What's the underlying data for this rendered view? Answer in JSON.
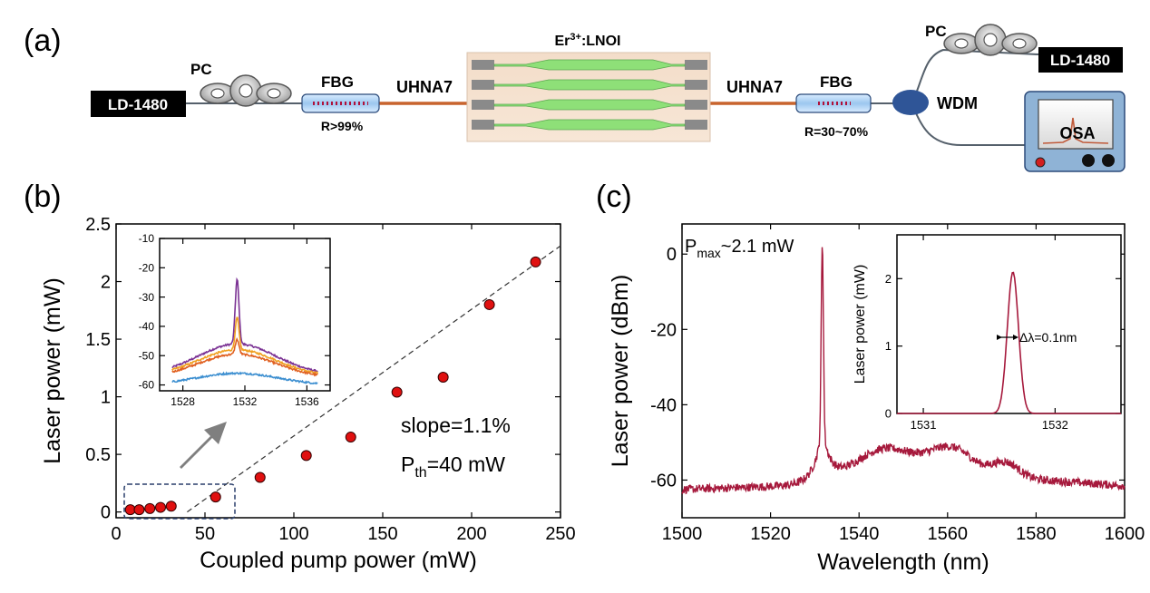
{
  "panel_a": {
    "label": "(a)",
    "ld_left": "LD-1480",
    "ld_right": "LD-1480",
    "pc_left": "PC",
    "pc_right": "PC",
    "fbg_left": "FBG",
    "fbg_left_r": "R>99%",
    "fbg_right": "FBG",
    "fbg_right_r": "R=30~70%",
    "uhna_left": "UHNA7",
    "uhna_right": "UHNA7",
    "chip_base": "Er",
    "chip_sup": "3+",
    "chip_rest": ":LNOI",
    "wdm": "WDM",
    "osa": "OSA"
  },
  "panel_b": {
    "label": "(b)",
    "slope_text": "slope=1.1%",
    "pth_main": "P",
    "pth_sub": "th",
    "pth_rest": "=40 mW"
  },
  "panel_c": {
    "label": "(c)",
    "pmax_main": "P",
    "pmax_sub": "max",
    "pmax_rest": "~2.1 mW",
    "linewidth_text": "Δλ=0.1nm"
  },
  "chart_data": [
    {
      "id": "b-main",
      "type": "scatter",
      "xlabel": "Coupled pump power (mW)",
      "ylabel": "Laser power (mW)",
      "xlim": [
        0,
        250
      ],
      "ylim": [
        -0.05,
        2.5
      ],
      "xticks": [
        0,
        50,
        100,
        150,
        200,
        250
      ],
      "yticks": [
        0,
        0.5,
        1,
        1.5,
        2,
        2.5
      ],
      "xtick_labels": [
        "0",
        "50",
        "100",
        "150",
        "200",
        "250"
      ],
      "ytick_labels": [
        "0",
        "0.5",
        "1",
        "1.5",
        "2",
        "2.5"
      ],
      "points": [
        [
          8,
          0.02
        ],
        [
          13,
          0.02
        ],
        [
          19,
          0.03
        ],
        [
          25,
          0.04
        ],
        [
          31,
          0.05
        ],
        [
          56,
          0.13
        ],
        [
          81,
          0.3
        ],
        [
          107,
          0.49
        ],
        [
          132,
          0.65
        ],
        [
          158,
          1.04
        ],
        [
          184,
          1.17
        ],
        [
          210,
          1.8
        ],
        [
          236,
          2.17
        ]
      ],
      "fit_line": [
        [
          40,
          0
        ],
        [
          250,
          2.31
        ]
      ],
      "annotations": [
        "slope=1.1%",
        "Pth=40 mW"
      ]
    },
    {
      "id": "b-inset",
      "type": "line",
      "xlim": [
        1526.5,
        1537.5
      ],
      "ylim": [
        -62,
        -10
      ],
      "xticks": [
        1528,
        1532,
        1536
      ],
      "yticks": [
        -10,
        -20,
        -30,
        -40,
        -50,
        -60
      ],
      "xtick_labels": [
        "1528",
        "1532",
        "1536"
      ],
      "ytick_labels": [
        "-10",
        "-20",
        "-30",
        "-40",
        "-50",
        "-60"
      ],
      "series": [
        {
          "color": "#7b3294",
          "base": -56.5,
          "amp": 10.5,
          "w": 2.5,
          "peak": 22.0
        },
        {
          "color": "#f0a020",
          "base": -57.0,
          "amp": 9.0,
          "w": 2.5,
          "peak": 11.0
        },
        {
          "color": "#e06020",
          "base": -57.5,
          "amp": 8.0,
          "w": 2.5,
          "peak": 5.0
        },
        {
          "color": "#3b8ed0",
          "base": -60.0,
          "amp": 4.0,
          "w": 2.6,
          "peak": 0.0
        }
      ]
    },
    {
      "id": "c-main",
      "type": "line",
      "xlabel": "Wavelength (nm)",
      "ylabel": "Laser power (dBm)",
      "xlim": [
        1500,
        1600
      ],
      "ylim": [
        -70,
        8
      ],
      "xticks": [
        1500,
        1520,
        1540,
        1560,
        1580,
        1600
      ],
      "yticks": [
        0,
        -20,
        -40,
        -60
      ],
      "xtick_labels": [
        "1500",
        "1520",
        "1540",
        "1560",
        "1580",
        "1600"
      ],
      "ytick_labels": [
        "0",
        "-20",
        "-40",
        "-60"
      ],
      "color": "#a6193c",
      "peak_wavelength": 1531.7,
      "peak_value": 3
    },
    {
      "id": "c-inset",
      "type": "line",
      "xlabel": "",
      "ylabel": "Laser power (mW)",
      "xlim": [
        1530.8,
        1532.5
      ],
      "ylim": [
        0,
        2.65
      ],
      "xticks": [
        1531,
        1532
      ],
      "yticks": [
        0,
        1,
        2
      ],
      "xtick_labels": [
        "1531",
        "1532"
      ],
      "ytick_labels": [
        "0",
        "1",
        "2"
      ],
      "color": "#a6193c",
      "peak_wavelength": 1531.68,
      "peak_value": 2.1,
      "fwhm_nm": 0.1
    }
  ]
}
